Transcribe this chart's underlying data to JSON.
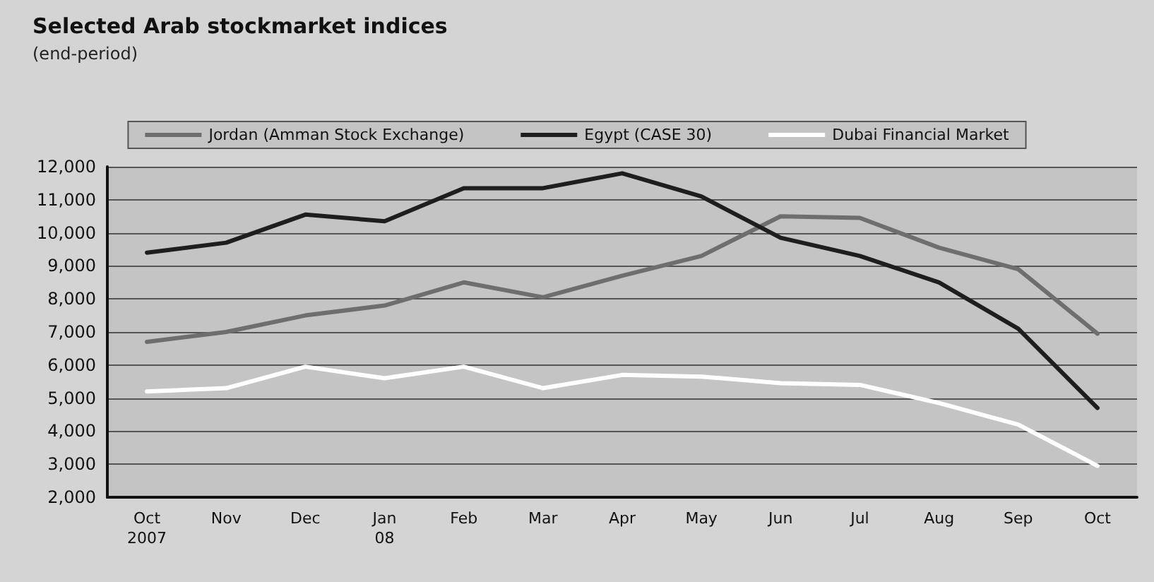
{
  "chart_data": {
    "type": "line",
    "title": "Selected Arab stockmarket indices",
    "subtitle": "(end-period)",
    "categories": [
      "Oct\n2007",
      "Nov",
      "Dec",
      "Jan\n08",
      "Feb",
      "Mar",
      "Apr",
      "May",
      "Jun",
      "Jul",
      "Aug",
      "Sep",
      "Oct"
    ],
    "series": [
      {
        "name": "Jordan (Amman Stock Exchange)",
        "color": "#6e6e6e",
        "values": [
          6700,
          7000,
          7500,
          7800,
          8500,
          8050,
          8700,
          9300,
          10500,
          10450,
          9550,
          8900,
          6950
        ]
      },
      {
        "name": "Egypt (CASE 30)",
        "color": "#1e1e1e",
        "values": [
          9400,
          9700,
          10550,
          10350,
          11350,
          11350,
          11800,
          11100,
          9850,
          9300,
          8500,
          7100,
          4700
        ]
      },
      {
        "name": "Dubai Financial Market",
        "color": "#ffffff",
        "values": [
          5200,
          5300,
          5950,
          5600,
          5950,
          5300,
          5700,
          5650,
          5450,
          5400,
          4850,
          4200,
          2950
        ]
      }
    ],
    "ylim": [
      2000,
      12000
    ],
    "yticks": [
      {
        "value": 2000,
        "label": "2,000"
      },
      {
        "value": 3000,
        "label": "3,000"
      },
      {
        "value": 4000,
        "label": "4,000"
      },
      {
        "value": 5000,
        "label": "5,000"
      },
      {
        "value": 6000,
        "label": "6,000"
      },
      {
        "value": 7000,
        "label": "7,000"
      },
      {
        "value": 8000,
        "label": "8,000"
      },
      {
        "value": 9000,
        "label": "9,000"
      },
      {
        "value": 10000,
        "label": "10,000"
      },
      {
        "value": 11000,
        "label": "11,000"
      },
      {
        "value": 12000,
        "label": "12,000"
      }
    ],
    "grid": "y",
    "legend": "top",
    "marker": "none",
    "line_style": "solid"
  }
}
